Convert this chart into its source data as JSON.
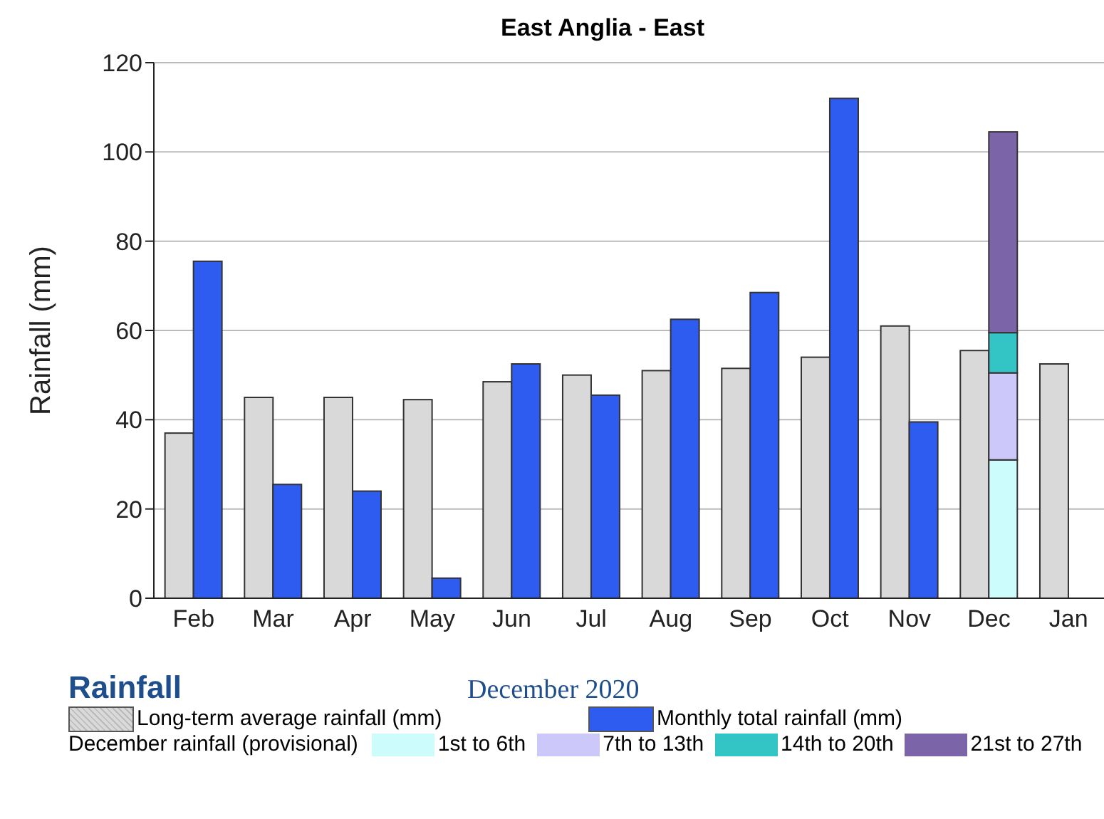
{
  "chart_data": {
    "type": "bar",
    "title": "East Anglia - East",
    "subtitle": "December 2020",
    "ylabel": "Rainfall (mm)",
    "legend_title": "Rainfall",
    "categories": [
      "Feb",
      "Mar",
      "Apr",
      "May",
      "Jun",
      "Jul",
      "Aug",
      "Sep",
      "Oct",
      "Nov",
      "Dec",
      "Jan"
    ],
    "stacked": false,
    "series": [
      {
        "name": "Long-term average rainfall (mm)",
        "color": "#d9d9d9",
        "values": [
          37,
          45,
          45,
          44.5,
          48.5,
          50,
          51,
          51.5,
          54,
          61,
          55.5,
          52.5
        ]
      },
      {
        "name": "Monthly total rainfall (mm)",
        "color": "#2f5cf0",
        "values": [
          75.5,
          25.5,
          24,
          4.5,
          52.5,
          45.5,
          62.5,
          68.5,
          112,
          39.5,
          null,
          null
        ]
      },
      {
        "name": "1st to 6th",
        "color": "#ccfcfc",
        "base": [
          null,
          null,
          null,
          null,
          null,
          null,
          null,
          null,
          null,
          null,
          0,
          null
        ],
        "values": [
          null,
          null,
          null,
          null,
          null,
          null,
          null,
          null,
          null,
          null,
          31,
          null
        ]
      },
      {
        "name": "7th to 13th",
        "color": "#ccc8fa",
        "base": [
          null,
          null,
          null,
          null,
          null,
          null,
          null,
          null,
          null,
          null,
          31,
          null
        ],
        "values": [
          null,
          null,
          null,
          null,
          null,
          null,
          null,
          null,
          null,
          null,
          19.5,
          null
        ]
      },
      {
        "name": "14th to 20th",
        "color": "#33c5c5",
        "base": [
          null,
          null,
          null,
          null,
          null,
          null,
          null,
          null,
          null,
          null,
          50.5,
          null
        ],
        "values": [
          null,
          null,
          null,
          null,
          null,
          null,
          null,
          null,
          null,
          null,
          9,
          null
        ]
      },
      {
        "name": "21st to 27th",
        "color": "#7b65a8",
        "base": [
          null,
          null,
          null,
          null,
          null,
          null,
          null,
          null,
          null,
          null,
          59.5,
          null
        ],
        "values": [
          null,
          null,
          null,
          null,
          null,
          null,
          null,
          null,
          null,
          null,
          45,
          null
        ]
      }
    ],
    "ylim": [
      0,
      120
    ],
    "yticks": [
      0,
      20,
      40,
      60,
      80,
      100,
      120
    ],
    "grid": "y",
    "legend": "bottom",
    "annotations": [
      "December rainfall (provisional)"
    ]
  }
}
